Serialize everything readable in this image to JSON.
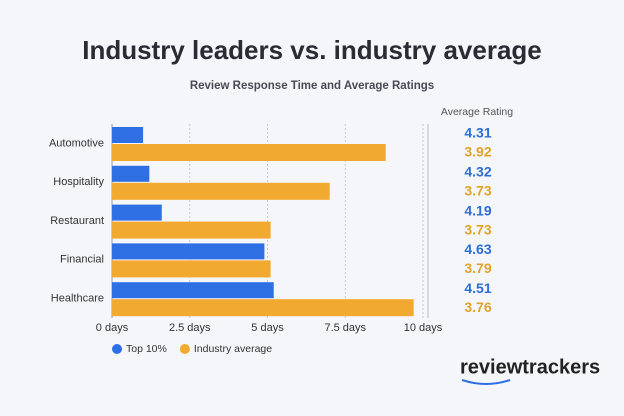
{
  "chart_data": {
    "type": "bar",
    "orientation": "horizontal",
    "title": "Industry leaders vs. industry average",
    "subtitle": "Review Response Time and Average Ratings",
    "rating_title": "Average Rating",
    "categories": [
      "Automotive",
      "Hospitality",
      "Restaurant",
      "Financial",
      "Healthcare"
    ],
    "series": [
      {
        "name": "Top 10%",
        "color": "#2f6fe4",
        "rating_color": "#2b6fd6",
        "values": [
          1.0,
          1.2,
          1.6,
          4.9,
          5.2
        ],
        "ratings": [
          4.31,
          4.32,
          4.19,
          4.63,
          4.51
        ]
      },
      {
        "name": "Industry average",
        "color": "#f2a930",
        "rating_color": "#e2a227",
        "values": [
          8.8,
          7.0,
          5.1,
          5.1,
          9.7
        ],
        "ratings": [
          3.92,
          3.73,
          3.73,
          3.79,
          3.76
        ]
      }
    ],
    "xlim": [
      0,
      10
    ],
    "xticks": [
      {
        "value": 0,
        "label": "0 days"
      },
      {
        "value": 2.5,
        "label": "2.5 days"
      },
      {
        "value": 5,
        "label": "5 days"
      },
      {
        "value": 7.5,
        "label": "7.5 days"
      },
      {
        "value": 10,
        "label": "10 days"
      }
    ],
    "grid": true,
    "logo": "reviewtrackers"
  }
}
